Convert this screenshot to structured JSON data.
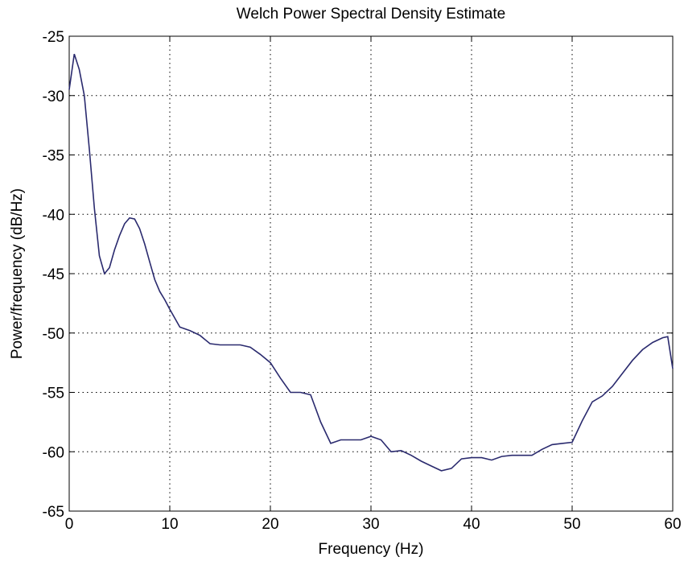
{
  "chart_data": {
    "type": "line",
    "title": "Welch Power Spectral Density Estimate",
    "xlabel": "Frequency (Hz)",
    "ylabel": "Power/frequency (dB/Hz)",
    "xlim": [
      0,
      60
    ],
    "ylim": [
      -65,
      -25
    ],
    "xticks": [
      0,
      10,
      20,
      30,
      40,
      50,
      60
    ],
    "yticks": [
      -25,
      -30,
      -35,
      -40,
      -45,
      -50,
      -55,
      -60,
      -65
    ],
    "grid": true,
    "line_color": "#2a2a6e",
    "series": [
      {
        "x": [
          0,
          0.5,
          1,
          1.5,
          2,
          2.5,
          3,
          3.5,
          4,
          4.5,
          5,
          5.5,
          6,
          6.5,
          7,
          7.5,
          8,
          8.5,
          9,
          9.5,
          10,
          11,
          12,
          13,
          14,
          15,
          16,
          17,
          18,
          19,
          20,
          21,
          22,
          23,
          24,
          25,
          26,
          27,
          28,
          29,
          30,
          31,
          32,
          33,
          34,
          35,
          36,
          37,
          38,
          39,
          40,
          41,
          42,
          43,
          44,
          45,
          46,
          47,
          48,
          49,
          50,
          51,
          52,
          53,
          54,
          55,
          56,
          57,
          58,
          59,
          59.5,
          60
        ],
        "values": [
          -29.5,
          -26.5,
          -27.8,
          -30,
          -34.5,
          -39.5,
          -43.5,
          -45,
          -44.5,
          -43,
          -41.8,
          -40.8,
          -40.3,
          -40.4,
          -41.2,
          -42.5,
          -44,
          -45.5,
          -46.5,
          -47.2,
          -48,
          -49.5,
          -49.8,
          -50.2,
          -50.9,
          -51,
          -51,
          -51,
          -51.2,
          -51.8,
          -52.5,
          -53.8,
          -55,
          -55,
          -55.2,
          -57.5,
          -59.3,
          -59,
          -59,
          -59,
          -58.7,
          -59,
          -60,
          -59.9,
          -60.3,
          -60.8,
          -61.2,
          -61.6,
          -61.4,
          -60.6,
          -60.5,
          -60.5,
          -60.7,
          -60.4,
          -60.3,
          -60.3,
          -60.3,
          -59.8,
          -59.4,
          -59.3,
          -59.2,
          -57.4,
          -55.8,
          -55.3,
          -54.5,
          -53.4,
          -52.3,
          -51.4,
          -50.8,
          -50.4,
          -50.3,
          -53
        ]
      }
    ]
  }
}
